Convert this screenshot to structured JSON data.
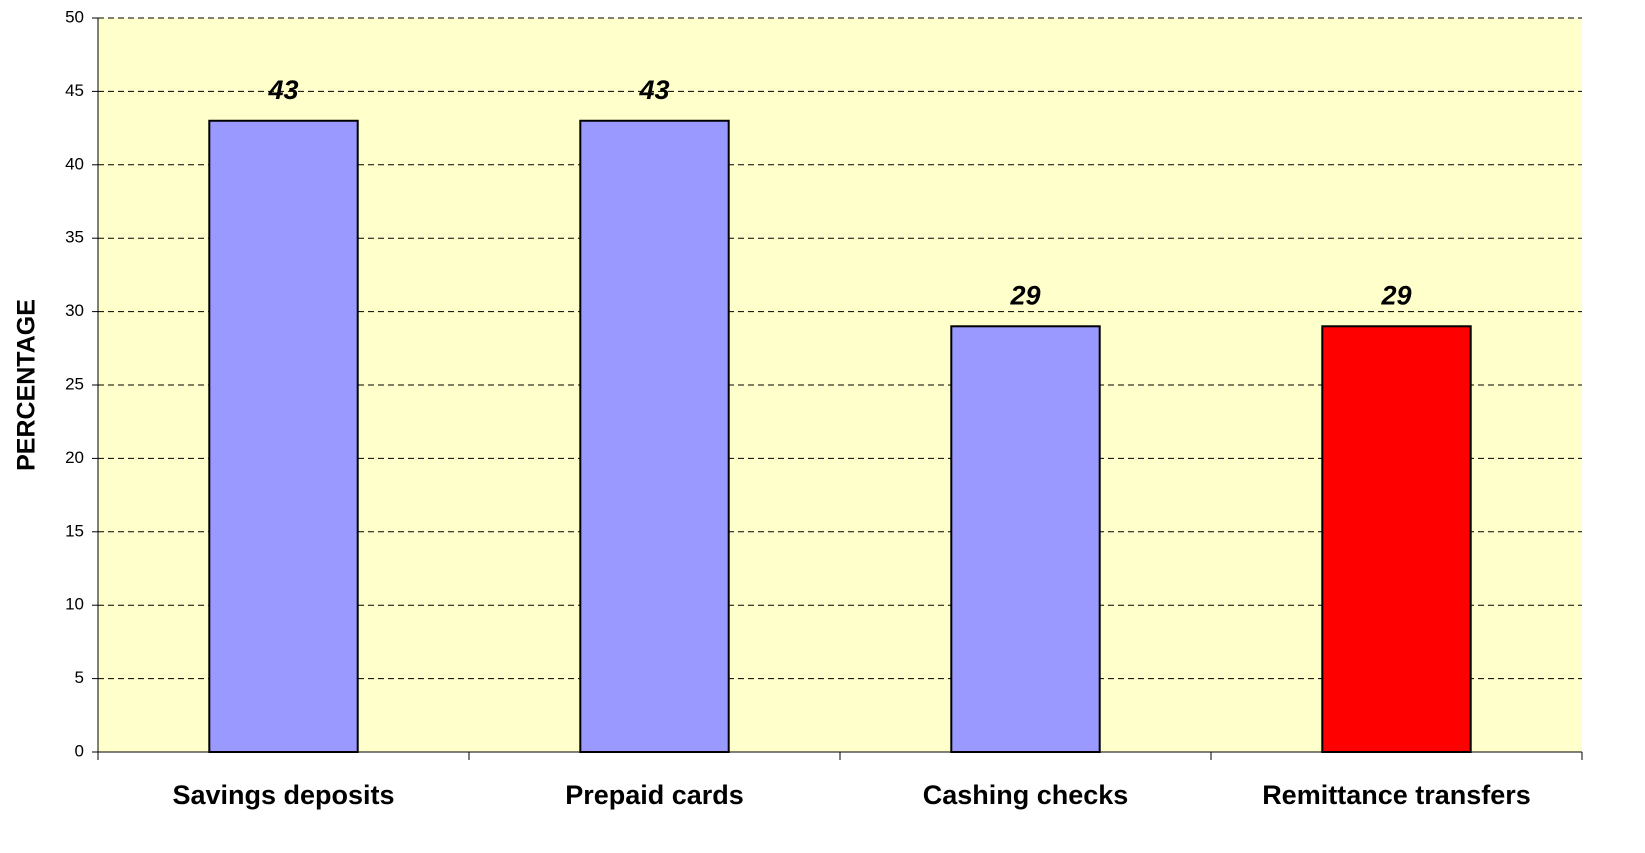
{
  "chart_data": {
    "type": "bar",
    "y_label": "PERCENTAGE",
    "categories": [
      "Savings deposits",
      "Prepaid cards",
      "Cashing checks",
      "Remittance transfers"
    ],
    "values": [
      43,
      43,
      29,
      29
    ],
    "colors": [
      "#9999ff",
      "#9999ff",
      "#9999ff",
      "#ff0000"
    ],
    "ylim": [
      0,
      50
    ],
    "yticks": [
      0,
      5,
      10,
      15,
      20,
      25,
      30,
      35,
      40,
      45,
      50
    ],
    "grid": true
  }
}
